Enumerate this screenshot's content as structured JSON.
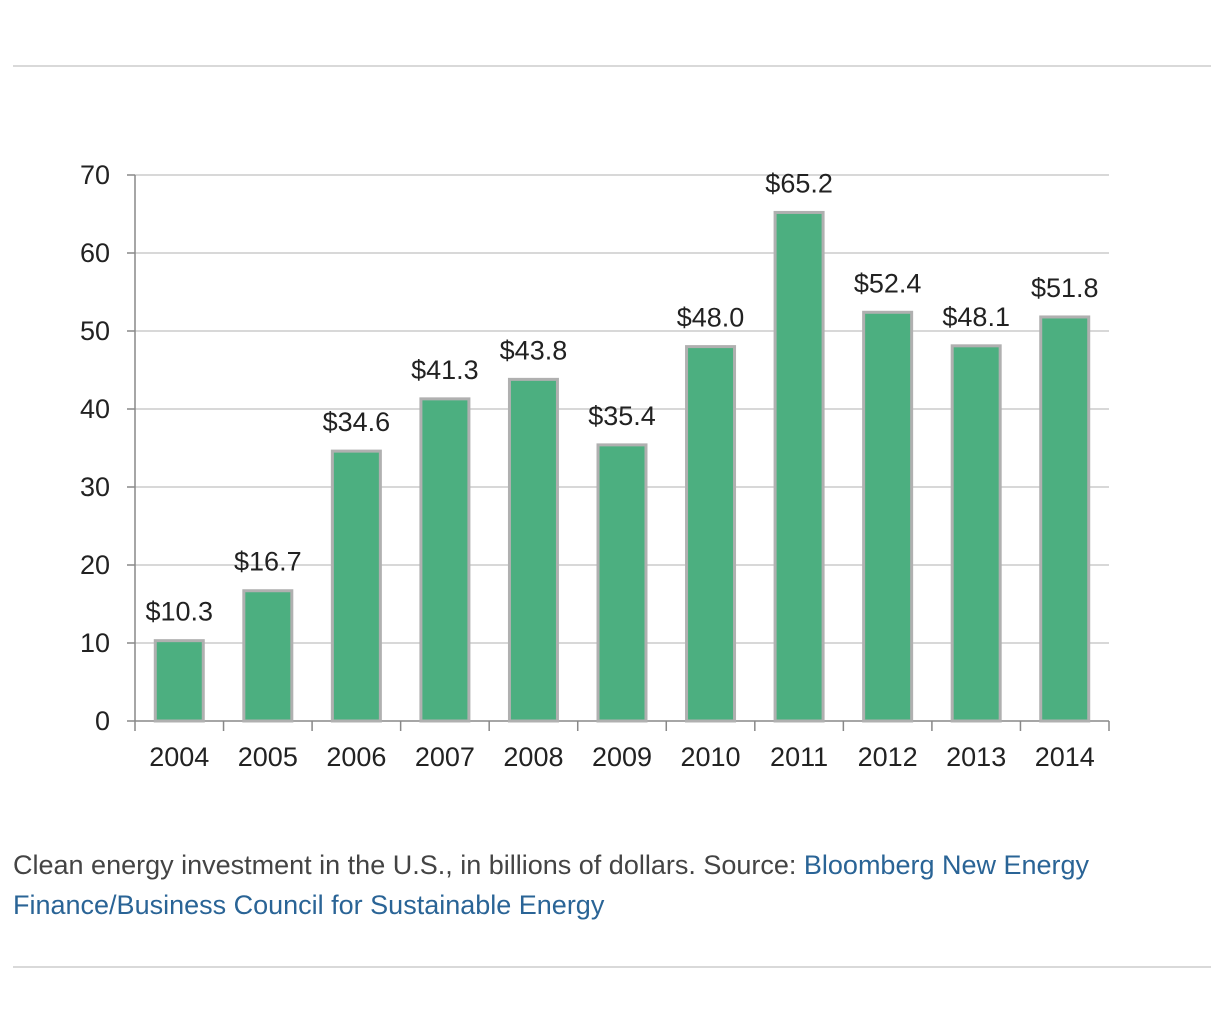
{
  "chart_data": {
    "type": "bar",
    "title": "",
    "xlabel": "",
    "ylabel": "",
    "categories": [
      "2004",
      "2005",
      "2006",
      "2007",
      "2008",
      "2009",
      "2010",
      "2011",
      "2012",
      "2013",
      "2014"
    ],
    "values": [
      10.3,
      16.7,
      34.6,
      41.3,
      43.8,
      35.4,
      48.0,
      65.2,
      52.4,
      48.1,
      51.8
    ],
    "data_labels": [
      "$10.3",
      "$16.7",
      "$34.6",
      "$41.3",
      "$43.8",
      "$35.4",
      "$48.0",
      "$65.2",
      "$52.4",
      "$48.1",
      "$51.8"
    ],
    "yticks": [
      "0",
      "10",
      "20",
      "30",
      "40",
      "50",
      "60",
      "70"
    ],
    "ylim": [
      0,
      70
    ],
    "grid": true,
    "bar_color": "#4caf80",
    "bar_edge_color": "#b0b0b0",
    "grid_color": "#cccccc"
  },
  "caption": {
    "text": "Clean energy investment in the U.S., in billions of dollars. Source: ",
    "link_text": "Bloomberg New Energy Finance/Business Council for Sustainable Energy"
  },
  "colors": {
    "link": "#2a6496",
    "caption_text": "#444444"
  }
}
